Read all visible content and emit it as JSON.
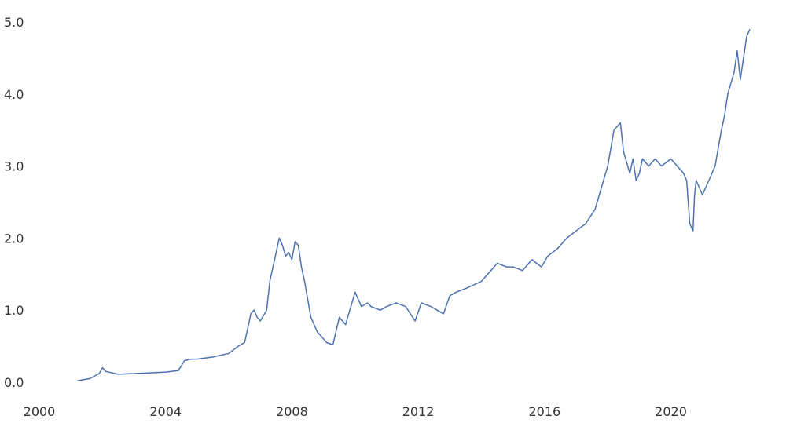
{
  "chart_data": {
    "type": "line",
    "title": "",
    "xlabel": "",
    "ylabel": "",
    "xlim": [
      2000,
      2022.6
    ],
    "ylim": [
      0,
      5.0
    ],
    "x_ticks": [
      {
        "value": 2000,
        "label": "2000"
      },
      {
        "value": 2004,
        "label": "2004"
      },
      {
        "value": 2008,
        "label": "2008"
      },
      {
        "value": 2012,
        "label": "2012"
      },
      {
        "value": 2016,
        "label": "2016"
      },
      {
        "value": 2020,
        "label": "2020"
      }
    ],
    "y_ticks": [
      {
        "value": 0.0,
        "label": "0.0"
      },
      {
        "value": 1.0,
        "label": "1.0"
      },
      {
        "value": 2.0,
        "label": "2.0"
      },
      {
        "value": 3.0,
        "label": "3.0"
      },
      {
        "value": 4.0,
        "label": "4.0"
      },
      {
        "value": 5.0,
        "label": "5.0"
      }
    ],
    "grid": false,
    "legend": "none",
    "series": [
      {
        "color": "#4c72b0",
        "x": [
          2001.2,
          2001.6,
          2001.9,
          2002.0,
          2002.1,
          2002.3,
          2002.5,
          2003.0,
          2003.5,
          2004.0,
          2004.4,
          2004.6,
          2004.8,
          2005.0,
          2005.5,
          2006.0,
          2006.3,
          2006.5,
          2006.7,
          2006.8,
          2006.9,
          2007.0,
          2007.2,
          2007.3,
          2007.5,
          2007.6,
          2007.7,
          2007.8,
          2007.9,
          2008.0,
          2008.1,
          2008.2,
          2008.3,
          2008.4,
          2008.6,
          2008.8,
          2009.0,
          2009.1,
          2009.3,
          2009.5,
          2009.7,
          2009.8,
          2010.0,
          2010.2,
          2010.4,
          2010.5,
          2010.8,
          2011.0,
          2011.3,
          2011.6,
          2011.9,
          2012.1,
          2012.4,
          2012.6,
          2012.8,
          2013.0,
          2013.2,
          2013.5,
          2014.0,
          2014.5,
          2014.8,
          2015.0,
          2015.3,
          2015.6,
          2015.9,
          2016.1,
          2016.4,
          2016.7,
          2017.0,
          2017.3,
          2017.6,
          2018.0,
          2018.2,
          2018.4,
          2018.5,
          2018.7,
          2018.8,
          2018.9,
          2019.0,
          2019.1,
          2019.3,
          2019.5,
          2019.7,
          2020.0,
          2020.2,
          2020.4,
          2020.5,
          2020.6,
          2020.7,
          2020.75,
          2020.8,
          2020.9,
          2021.0,
          2021.2,
          2021.4,
          2021.6,
          2021.7,
          2021.8,
          2022.0,
          2022.1,
          2022.2,
          2022.3,
          2022.4,
          2022.5
        ],
        "y": [
          0.02,
          0.05,
          0.12,
          0.2,
          0.15,
          0.13,
          0.11,
          0.12,
          0.13,
          0.14,
          0.16,
          0.3,
          0.32,
          0.32,
          0.35,
          0.4,
          0.5,
          0.55,
          0.95,
          1.0,
          0.9,
          0.85,
          1.0,
          1.4,
          1.8,
          2.0,
          1.9,
          1.75,
          1.8,
          1.7,
          1.95,
          1.9,
          1.6,
          1.4,
          0.9,
          0.7,
          0.6,
          0.55,
          0.52,
          0.9,
          0.8,
          0.95,
          1.25,
          1.05,
          1.1,
          1.05,
          1.0,
          1.05,
          1.1,
          1.05,
          0.85,
          1.1,
          1.05,
          1.0,
          0.95,
          1.2,
          1.25,
          1.3,
          1.4,
          1.65,
          1.6,
          1.6,
          1.55,
          1.7,
          1.6,
          1.75,
          1.85,
          2.0,
          2.1,
          2.2,
          2.4,
          3.0,
          3.5,
          3.6,
          3.2,
          2.9,
          3.1,
          2.8,
          2.9,
          3.1,
          3.0,
          3.1,
          3.0,
          3.1,
          3.0,
          2.9,
          2.8,
          2.2,
          2.1,
          2.6,
          2.8,
          2.7,
          2.6,
          2.8,
          3.0,
          3.5,
          3.7,
          4.0,
          4.3,
          4.6,
          4.2,
          4.5,
          4.8,
          4.9
        ]
      }
    ]
  }
}
